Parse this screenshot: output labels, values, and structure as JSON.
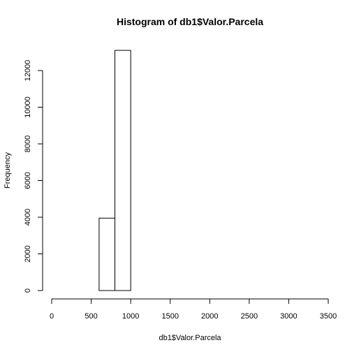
{
  "chart_data": {
    "type": "bar",
    "title": "Histogram of db1$Valor.Parcela",
    "xlabel": "db1$Valor.Parcela",
    "ylabel": "Frequency",
    "xlim": [
      0,
      3500
    ],
    "ylim": [
      0,
      13000
    ],
    "x_ticks": [
      0,
      500,
      1000,
      1500,
      2000,
      2500,
      3000,
      3500
    ],
    "y_ticks": [
      0,
      2000,
      4000,
      6000,
      8000,
      10000,
      12000
    ],
    "bin_width": 200,
    "bins": [
      {
        "start": 0,
        "end": 200,
        "count": 0
      },
      {
        "start": 200,
        "end": 400,
        "count": 0
      },
      {
        "start": 400,
        "end": 600,
        "count": 0
      },
      {
        "start": 600,
        "end": 800,
        "count": 3950
      },
      {
        "start": 800,
        "end": 1000,
        "count": 13100
      },
      {
        "start": 1000,
        "end": 1200,
        "count": 0
      },
      {
        "start": 1200,
        "end": 1400,
        "count": 0
      },
      {
        "start": 1400,
        "end": 1600,
        "count": 0
      },
      {
        "start": 1600,
        "end": 1800,
        "count": 0
      },
      {
        "start": 1800,
        "end": 2000,
        "count": 0
      },
      {
        "start": 2000,
        "end": 2200,
        "count": 0
      },
      {
        "start": 2200,
        "end": 2400,
        "count": 0
      },
      {
        "start": 2400,
        "end": 2600,
        "count": 0
      },
      {
        "start": 2600,
        "end": 2800,
        "count": 0
      },
      {
        "start": 2800,
        "end": 3000,
        "count": 0
      },
      {
        "start": 3000,
        "end": 3200,
        "count": 0
      },
      {
        "start": 3200,
        "end": 3400,
        "count": 0
      }
    ],
    "grid": false,
    "legend": "none"
  }
}
